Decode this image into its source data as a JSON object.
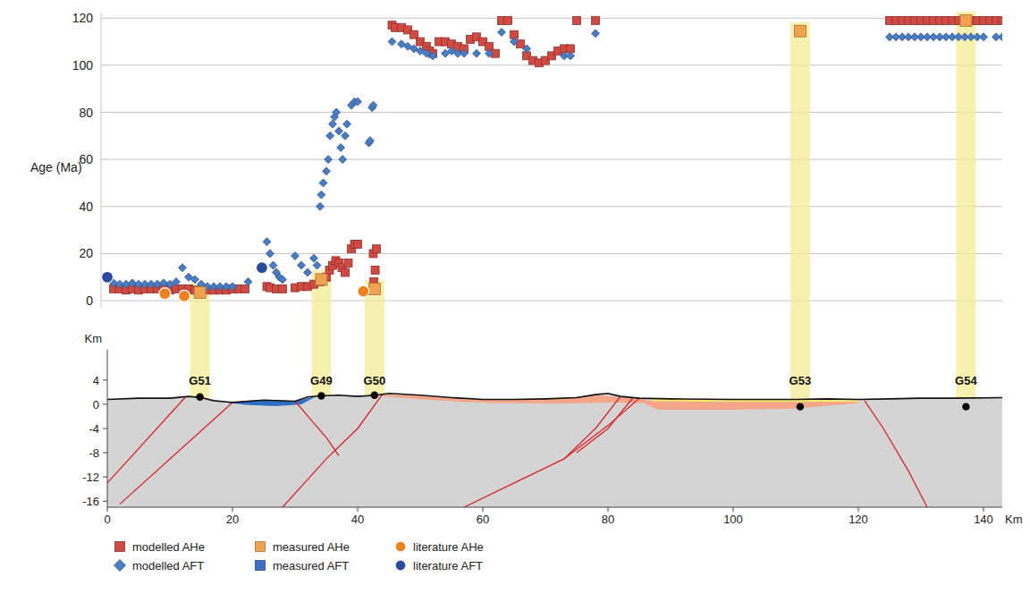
{
  "chart_data": {
    "type": "scatter",
    "y_label": "Age (Ma)",
    "xlim": [
      -1,
      143
    ],
    "ylim": [
      -3,
      122
    ],
    "yticks": [
      0,
      20,
      40,
      60,
      80,
      100,
      120
    ],
    "grid": true,
    "tick_labels": "y",
    "legend": "bottom",
    "series": [
      {
        "name": "modelled AHe",
        "color": "#cf4a43",
        "marker": "square",
        "x": [
          1,
          2,
          3,
          4,
          5,
          6,
          7,
          8,
          9,
          10,
          11,
          12,
          13,
          14,
          15,
          16,
          17,
          18,
          19,
          20,
          21,
          22,
          25.5,
          26,
          27,
          28,
          30,
          31,
          32,
          33,
          34,
          35,
          35.5,
          36,
          36.5,
          37,
          37.5,
          38,
          38.5,
          39,
          39.5,
          40,
          42.5,
          42.8,
          43,
          42.6,
          45.5,
          46,
          47,
          48,
          49,
          50,
          51,
          51.5,
          52,
          53,
          54,
          55,
          56,
          57,
          58,
          59,
          60,
          61,
          62,
          63,
          64,
          65,
          66,
          67,
          68,
          69,
          70,
          71,
          72,
          73,
          74,
          75,
          78,
          125,
          126,
          127,
          128,
          129,
          130,
          131,
          132,
          133,
          134,
          135,
          136,
          137,
          138,
          139,
          140,
          141,
          142,
          143
        ],
        "values": [
          5,
          5,
          4.5,
          5,
          4.5,
          5,
          5,
          5,
          5,
          4.5,
          5,
          5,
          5,
          4.5,
          4,
          4.5,
          4.5,
          4.5,
          4.5,
          5,
          5,
          5,
          6,
          5.5,
          5,
          5,
          5.5,
          6,
          6,
          7,
          8,
          10,
          13,
          15,
          17,
          16,
          14,
          12,
          16,
          22,
          24,
          24,
          20,
          13,
          22,
          8,
          117,
          116,
          116,
          115,
          113,
          110,
          108,
          106,
          105,
          110,
          110,
          109,
          108,
          107,
          111,
          112,
          110,
          108,
          105,
          119,
          119,
          113,
          109,
          104,
          102,
          101,
          102,
          104,
          106,
          107,
          107,
          119,
          119,
          119,
          119,
          119,
          119,
          119,
          119,
          119,
          119,
          119,
          119,
          119,
          119,
          119,
          119,
          119,
          119,
          119,
          119,
          119
        ]
      },
      {
        "name": "modelled AFT",
        "color": "#4a7cc4",
        "marker": "diamond",
        "x": [
          1,
          2,
          3,
          4,
          5,
          6,
          7,
          8,
          9,
          10,
          11,
          12,
          13,
          14,
          15,
          16,
          17,
          18,
          19,
          20,
          22.5,
          25.5,
          26,
          26.5,
          27,
          27.5,
          28,
          30,
          31,
          32,
          33,
          33.5,
          34,
          34.2,
          34.5,
          35,
          35.3,
          35.6,
          36,
          36.3,
          36.6,
          37,
          37.3,
          37.6,
          38,
          38.3,
          39,
          39.5,
          40,
          41.8,
          42,
          42.3,
          42.5,
          45.5,
          47,
          48,
          49,
          50,
          51,
          52,
          54,
          55,
          56,
          57,
          59,
          61,
          63,
          65,
          67,
          73,
          74,
          78,
          125,
          126,
          127,
          128,
          129,
          130,
          131,
          132,
          133,
          134,
          135,
          136,
          137,
          138,
          139,
          140,
          142,
          143
        ],
        "values": [
          7.5,
          7,
          7,
          7.5,
          7,
          7,
          7,
          7,
          7.5,
          7,
          8,
          14,
          10,
          9,
          7,
          6,
          6,
          6,
          6,
          6,
          8,
          25,
          20,
          15,
          12,
          10,
          9,
          19,
          15,
          12,
          18,
          15,
          40,
          45,
          50,
          55,
          60,
          70,
          75,
          78,
          80,
          72,
          65,
          60,
          70,
          75,
          83,
          84.5,
          84.5,
          67,
          68,
          82,
          83,
          110,
          109,
          108,
          107,
          106,
          105,
          104,
          105,
          106,
          105,
          105,
          105,
          105,
          114,
          110,
          107,
          104,
          104,
          113.5,
          112,
          112,
          112,
          112,
          112,
          112,
          112,
          112,
          112,
          112,
          112,
          112,
          112,
          112,
          112,
          112,
          112,
          112
        ]
      },
      {
        "name": "measured AHe",
        "color": "#f0a24e",
        "marker": "square",
        "x": [
          14.8,
          34.2,
          42.7,
          110.7,
          137.2
        ],
        "values": [
          3.5,
          9,
          5,
          114.5,
          119
        ]
      },
      {
        "name": "measured AFT",
        "color": "#3b6fc4",
        "marker": "square",
        "x": [],
        "values": []
      },
      {
        "name": "literature AHe",
        "color": "#f0821e",
        "marker": "circle",
        "x": [
          9.2,
          12.3,
          40.9
        ],
        "values": [
          3,
          2,
          4
        ]
      },
      {
        "name": "literature AFT",
        "color": "#2c4a9c",
        "marker": "circle",
        "x": [
          0,
          24.7
        ],
        "values": [
          10,
          14
        ]
      }
    ]
  },
  "cross_section": {
    "x_label": "Km",
    "y_label": "Km",
    "xlim": [
      0,
      143
    ],
    "xticks": [
      0,
      20,
      40,
      60,
      80,
      100,
      120,
      140
    ],
    "ylim": [
      -17,
      9
    ],
    "yticks": [
      4,
      0,
      -4,
      -8,
      -12,
      -16
    ],
    "surface": {
      "color": "#d4d4d4",
      "x": [
        0,
        5,
        10,
        13,
        15,
        17,
        20,
        25,
        30,
        32,
        34,
        37,
        40,
        43,
        45,
        50,
        55,
        60,
        65,
        70,
        75,
        78,
        80,
        82,
        85,
        90,
        100,
        110,
        115,
        120,
        125,
        130,
        135,
        143
      ],
      "y": [
        0.8,
        1.0,
        1.0,
        1.3,
        1.1,
        0.6,
        0.3,
        0.7,
        0.5,
        1.2,
        1.4,
        1.5,
        1.3,
        1.5,
        1.8,
        1.5,
        1.1,
        0.8,
        0.8,
        0.9,
        1.1,
        1.6,
        1.8,
        1.3,
        1.0,
        0.9,
        0.8,
        0.8,
        0.9,
        0.8,
        0.9,
        1.0,
        1.0,
        1.1
      ]
    },
    "units": [
      {
        "color": "#2f6fc0",
        "x": [
          19,
          23,
          27,
          30,
          32,
          33.5,
          31,
          27,
          22
        ],
        "y": [
          0.3,
          0.6,
          0.7,
          0.5,
          1.0,
          1.4,
          0,
          -0.3,
          -0.1
        ]
      },
      {
        "color": "#f4a58a",
        "x": [
          44,
          50,
          56,
          62,
          70,
          78,
          82,
          86,
          86,
          80,
          72,
          62,
          55,
          48,
          44
        ],
        "y": [
          1.6,
          1.4,
          1.0,
          0.7,
          0.8,
          1.5,
          1.2,
          0.9,
          0.2,
          0.3,
          0.1,
          0.2,
          0.5,
          1.0,
          1.3
        ]
      },
      {
        "color": "#f4a58a",
        "x": [
          86,
          120,
          120,
          110,
          100,
          88,
          86
        ],
        "y": [
          0.6,
          0.5,
          0.2,
          -0.7,
          -0.9,
          -0.9,
          0
        ]
      },
      {
        "color": "#f5e86a",
        "x": [
          87,
          100,
          120,
          120,
          100,
          87
        ],
        "y": [
          0.9,
          0.8,
          0.7,
          0.4,
          0.4,
          0.5
        ]
      }
    ],
    "faults": [
      {
        "x": [
          12.5,
          0
        ],
        "y": [
          1.2,
          -13
        ]
      },
      {
        "x": [
          20,
          2
        ],
        "y": [
          0.3,
          -16.5
        ]
      },
      {
        "x": [
          30,
          32.5,
          35,
          37
        ],
        "y": [
          0.5,
          -2.5,
          -5.5,
          -8.5
        ]
      },
      {
        "x": [
          44,
          40,
          35,
          28
        ],
        "y": [
          1.7,
          -4,
          -9,
          -17
        ]
      },
      {
        "x": [
          85,
          80,
          73,
          65,
          57
        ],
        "y": [
          1.0,
          -3.5,
          -9,
          -13,
          -17
        ]
      },
      {
        "x": [
          82,
          78,
          73
        ],
        "y": [
          1.3,
          -4,
          -9
        ]
      },
      {
        "x": [
          84,
          80,
          75
        ],
        "y": [
          1.1,
          -4,
          -8
        ]
      },
      {
        "x": [
          121,
          124,
          128,
          131
        ],
        "y": [
          0.6,
          -4,
          -11,
          -17
        ]
      }
    ],
    "samples": [
      {
        "label": "G51",
        "x": 14.8,
        "y": 1.2
      },
      {
        "label": "G49",
        "x": 34.2,
        "y": 1.4
      },
      {
        "label": "G50",
        "x": 42.7,
        "y": 1.5
      },
      {
        "label": "G53",
        "x": 110.7,
        "y": -0.4
      },
      {
        "label": "G54",
        "x": 137.2,
        "y": -0.4
      }
    ]
  }
}
